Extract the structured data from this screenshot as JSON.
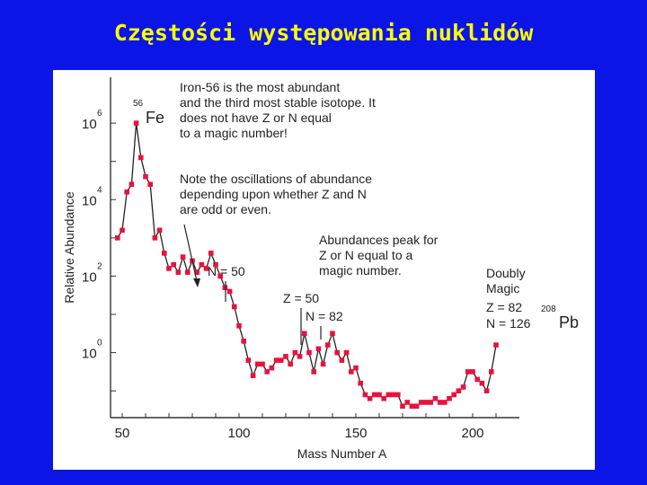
{
  "slide": {
    "title": "Częstości występowania nuklidów"
  },
  "chart_data": {
    "type": "line",
    "title": "",
    "xlabel": "Mass Number A",
    "ylabel": "Relative Abundance",
    "xlim": [
      45,
      220
    ],
    "ylim": [
      -1.7,
      7.2
    ],
    "y_scale": "log10",
    "x_ticks": [
      "50",
      "100",
      "150",
      "200"
    ],
    "x_tick_values": [
      50,
      100,
      150,
      200
    ],
    "y_ticks": [
      {
        "base": "10",
        "exp": "0",
        "value": 0
      },
      {
        "base": "10",
        "exp": "2",
        "value": 2
      },
      {
        "base": "10",
        "exp": "4",
        "value": 4
      },
      {
        "base": "10",
        "exp": "6",
        "value": 6
      }
    ],
    "series": [
      {
        "color": "#e8123c",
        "x": [
          48,
          50,
          52,
          54,
          56,
          58,
          60,
          62,
          64,
          66,
          68,
          70,
          72,
          74,
          76,
          78,
          80,
          82,
          84,
          86,
          88,
          90,
          92,
          94,
          96,
          98,
          100,
          102,
          104,
          106,
          108,
          110,
          112,
          114,
          116,
          118,
          120,
          122,
          124,
          126,
          128,
          130,
          132,
          134,
          136,
          138,
          140,
          142,
          144,
          146,
          148,
          150,
          152,
          154,
          156,
          158,
          160,
          162,
          164,
          166,
          168,
          170,
          172,
          174,
          176,
          178,
          180,
          182,
          184,
          186,
          188,
          190,
          192,
          194,
          196,
          198,
          200,
          202,
          204,
          206,
          208,
          210
        ],
        "y": [
          3.0,
          3.2,
          4.2,
          4.4,
          6.0,
          5.1,
          4.6,
          4.4,
          3.0,
          3.2,
          2.6,
          2.2,
          2.3,
          2.1,
          2.5,
          2.1,
          2.4,
          2.1,
          2.3,
          2.2,
          2.6,
          2.3,
          2.0,
          1.7,
          1.6,
          1.2,
          0.7,
          0.3,
          -0.2,
          -0.6,
          -0.3,
          -0.3,
          -0.5,
          -0.4,
          -0.2,
          -0.2,
          -0.1,
          -0.3,
          0.0,
          -0.1,
          0.5,
          0.0,
          -0.5,
          0.1,
          -0.3,
          0.2,
          0.5,
          0.0,
          -0.2,
          0.0,
          -0.5,
          -0.4,
          -0.8,
          -1.1,
          -1.2,
          -1.1,
          -1.1,
          -1.2,
          -1.1,
          -1.1,
          -1.1,
          -1.4,
          -1.3,
          -1.4,
          -1.4,
          -1.3,
          -1.3,
          -1.3,
          -1.2,
          -1.3,
          -1.3,
          -1.2,
          -1.1,
          -1.0,
          -0.9,
          -0.5,
          -0.5,
          -0.7,
          -0.8,
          -1.0,
          -0.5,
          0.2
        ]
      }
    ],
    "annotations": {
      "fe_sup": "56",
      "fe_sym": "Fe",
      "pb_sup": "208",
      "pb_sym": "Pb",
      "iron_note": [
        "Iron-56 is the most abundant",
        "and the third most stable isotope. It",
        "does not have Z or N equal",
        "to a magic number!"
      ],
      "oscillation_note": [
        "Note the oscillations of abundance",
        "depending upon whether Z and N",
        "are odd or even."
      ],
      "peak_note": [
        "Abundances peak for",
        "Z or N equal to a",
        "magic number."
      ],
      "n50": "N = 50",
      "z50": "Z = 50",
      "n82": "N = 82",
      "doubly_magic": [
        "Doubly",
        "Magic"
      ],
      "z82": "Z = 82",
      "n126": "N = 126"
    }
  }
}
